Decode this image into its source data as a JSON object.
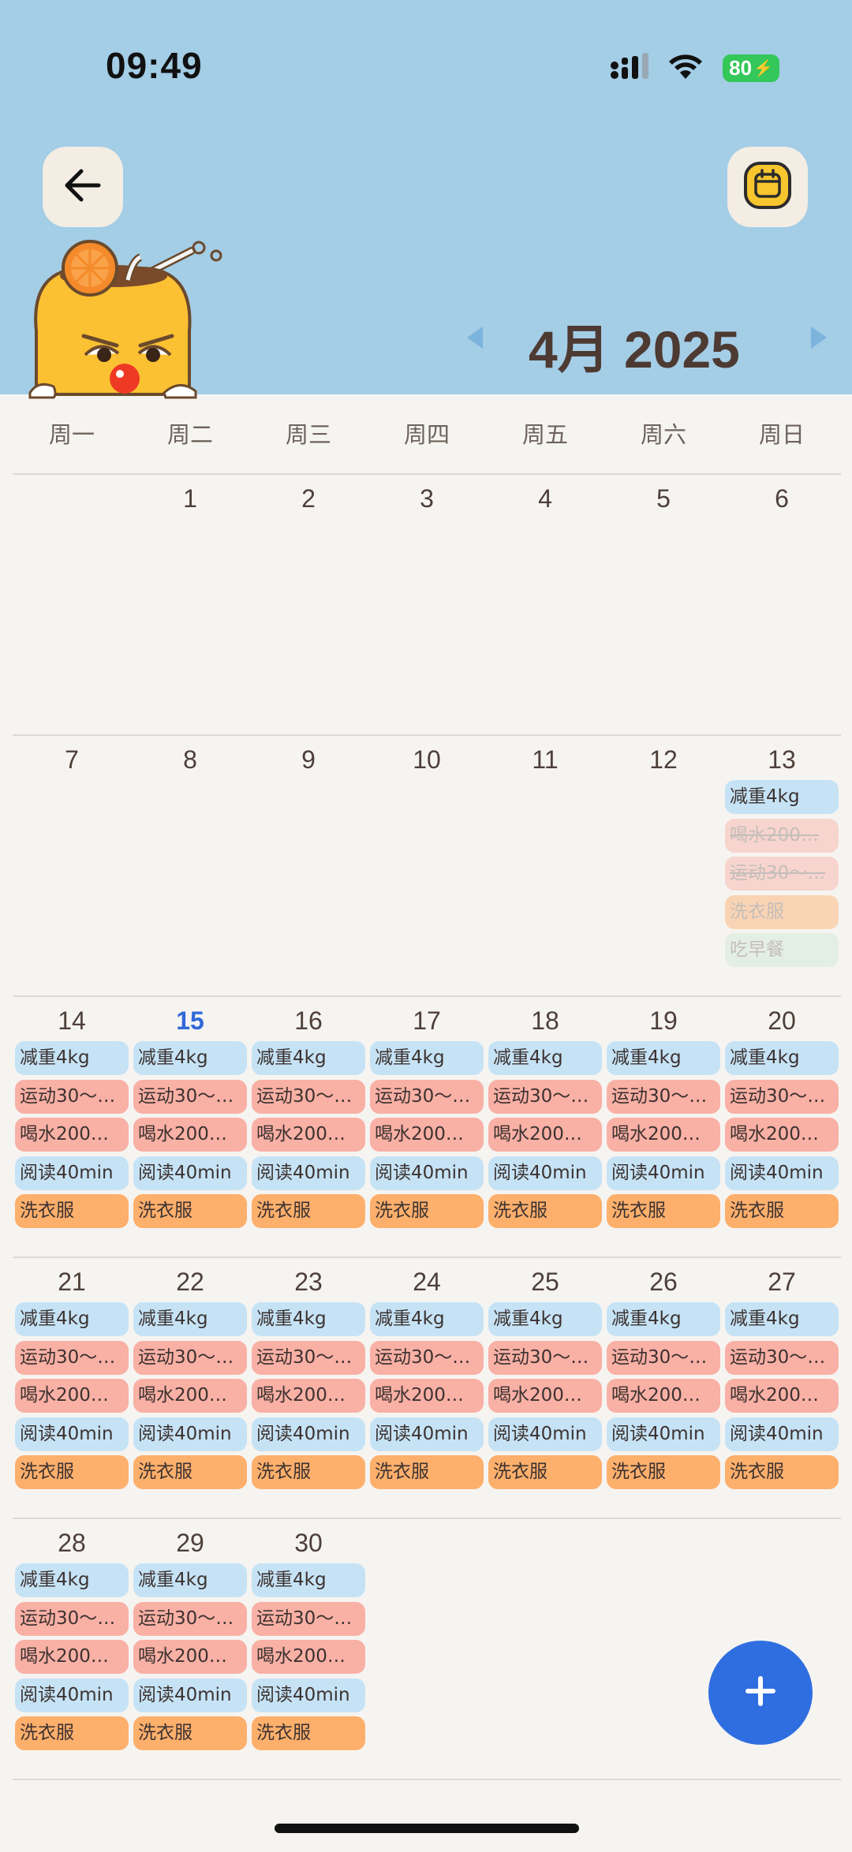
{
  "status_bar": {
    "time": "09:49",
    "battery": "80"
  },
  "header": {
    "month_label": "4月 2025",
    "accent": "#a4cde6"
  },
  "weekdays": [
    "周一",
    "周二",
    "周三",
    "周四",
    "周五",
    "周六",
    "周日"
  ],
  "weeks": [
    {
      "days": [
        {
          "num": "",
          "tasks": []
        },
        {
          "num": "1",
          "tasks": []
        },
        {
          "num": "2",
          "tasks": []
        },
        {
          "num": "3",
          "tasks": []
        },
        {
          "num": "4",
          "tasks": []
        },
        {
          "num": "5",
          "tasks": []
        },
        {
          "num": "6",
          "tasks": []
        }
      ]
    },
    {
      "days": [
        {
          "num": "7",
          "tasks": []
        },
        {
          "num": "8",
          "tasks": []
        },
        {
          "num": "9",
          "tasks": []
        },
        {
          "num": "10",
          "tasks": []
        },
        {
          "num": "11",
          "tasks": []
        },
        {
          "num": "12",
          "tasks": []
        },
        {
          "num": "13",
          "tasks": [
            {
              "label": "减重4kg",
              "color": "blue",
              "state": "normal"
            },
            {
              "label": "喝水200…",
              "color": "red",
              "state": "done"
            },
            {
              "label": "运动30～…",
              "color": "red",
              "state": "done"
            },
            {
              "label": "洗衣服",
              "color": "orange",
              "state": "faded"
            },
            {
              "label": "吃早餐",
              "color": "green",
              "state": "faded"
            }
          ]
        }
      ]
    },
    {
      "days": [
        {
          "num": "14",
          "tasks": "std"
        },
        {
          "num": "15",
          "today": true,
          "tasks": "std"
        },
        {
          "num": "16",
          "tasks": "std"
        },
        {
          "num": "17",
          "tasks": "std"
        },
        {
          "num": "18",
          "tasks": "std"
        },
        {
          "num": "19",
          "tasks": "std"
        },
        {
          "num": "20",
          "tasks": "std"
        }
      ]
    },
    {
      "days": [
        {
          "num": "21",
          "tasks": "std"
        },
        {
          "num": "22",
          "tasks": "std"
        },
        {
          "num": "23",
          "tasks": "std"
        },
        {
          "num": "24",
          "tasks": "std"
        },
        {
          "num": "25",
          "tasks": "std"
        },
        {
          "num": "26",
          "tasks": "std"
        },
        {
          "num": "27",
          "tasks": "std"
        }
      ]
    },
    {
      "days": [
        {
          "num": "28",
          "tasks": "std"
        },
        {
          "num": "29",
          "tasks": "std"
        },
        {
          "num": "30",
          "tasks": "std"
        },
        {
          "num": "",
          "tasks": []
        },
        {
          "num": "",
          "tasks": []
        },
        {
          "num": "",
          "tasks": []
        },
        {
          "num": "",
          "tasks": []
        }
      ]
    }
  ],
  "standard_tasks": [
    {
      "label": "减重4kg",
      "color": "blue",
      "state": "normal"
    },
    {
      "label": "运动30～…",
      "color": "red",
      "state": "normal"
    },
    {
      "label": "喝水200…",
      "color": "red",
      "state": "normal"
    },
    {
      "label": "阅读40min",
      "color": "blue",
      "state": "normal"
    },
    {
      "label": "洗衣服",
      "color": "orange",
      "state": "normal"
    }
  ],
  "icons": {
    "back": "arrow-left-icon",
    "calendar": "calendar-icon",
    "prev": "triangle-left-icon",
    "next": "triangle-right-icon",
    "add": "plus-icon"
  },
  "colors": {
    "blue": "#c6e3f6",
    "red": "#f9b0a5",
    "orange": "#fdaf6c",
    "green": "#cfe9d3",
    "today": "#3269d8",
    "fab": "#2f6ee0"
  }
}
